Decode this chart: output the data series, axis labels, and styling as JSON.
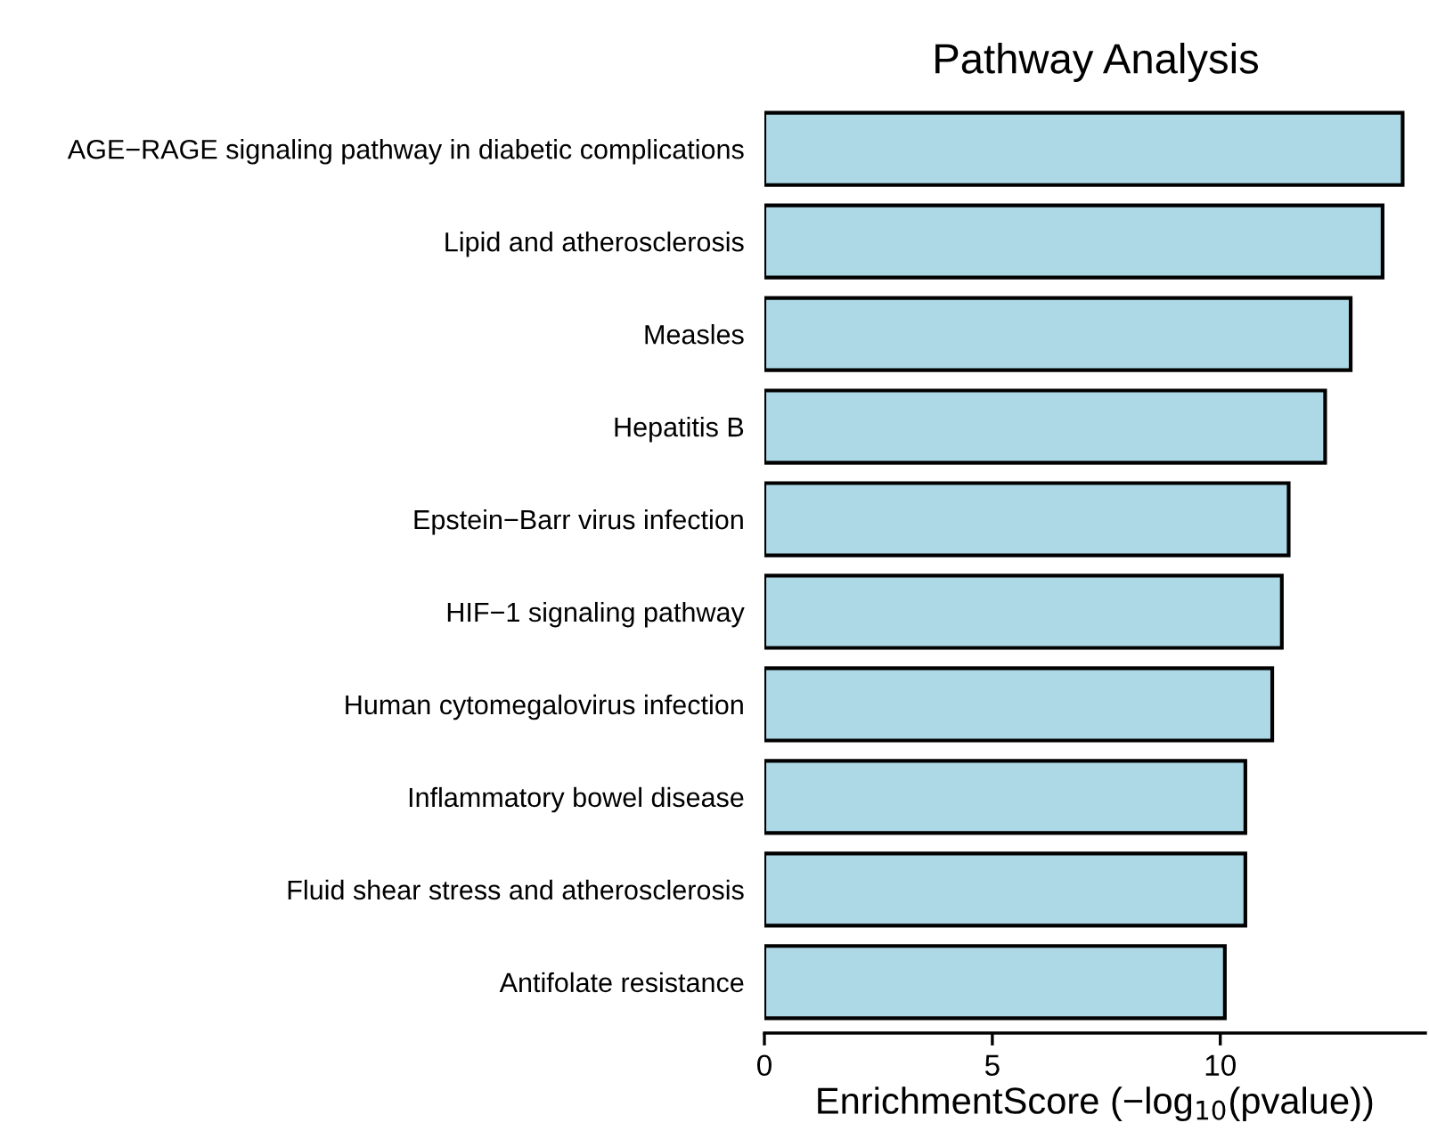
{
  "chart_data": {
    "type": "bar",
    "orientation": "horizontal",
    "title": "Pathway Analysis",
    "xlabel": "EnrichmentScore (−log$_{10}$(pvalue))",
    "categories": [
      "AGE−RAGE signaling pathway in diabetic complications",
      "Lipid and atherosclerosis",
      "Measles",
      "Hepatitis B",
      "Epstein−Barr virus infection",
      "HIF−1 signaling pathway",
      "Human cytomegalovirus infection",
      "Inflammatory bowel disease",
      "Fluid shear stress and atherosclerosis",
      "Antifolate resistance"
    ],
    "values": [
      14.0,
      13.56,
      12.86,
      12.3,
      11.5,
      11.35,
      11.14,
      10.55,
      10.55,
      10.1
    ],
    "color": "#add8e6",
    "xlim": [
      0,
      14.5
    ],
    "xticks": [
      0,
      5,
      10
    ],
    "grid": false,
    "legend": false
  }
}
